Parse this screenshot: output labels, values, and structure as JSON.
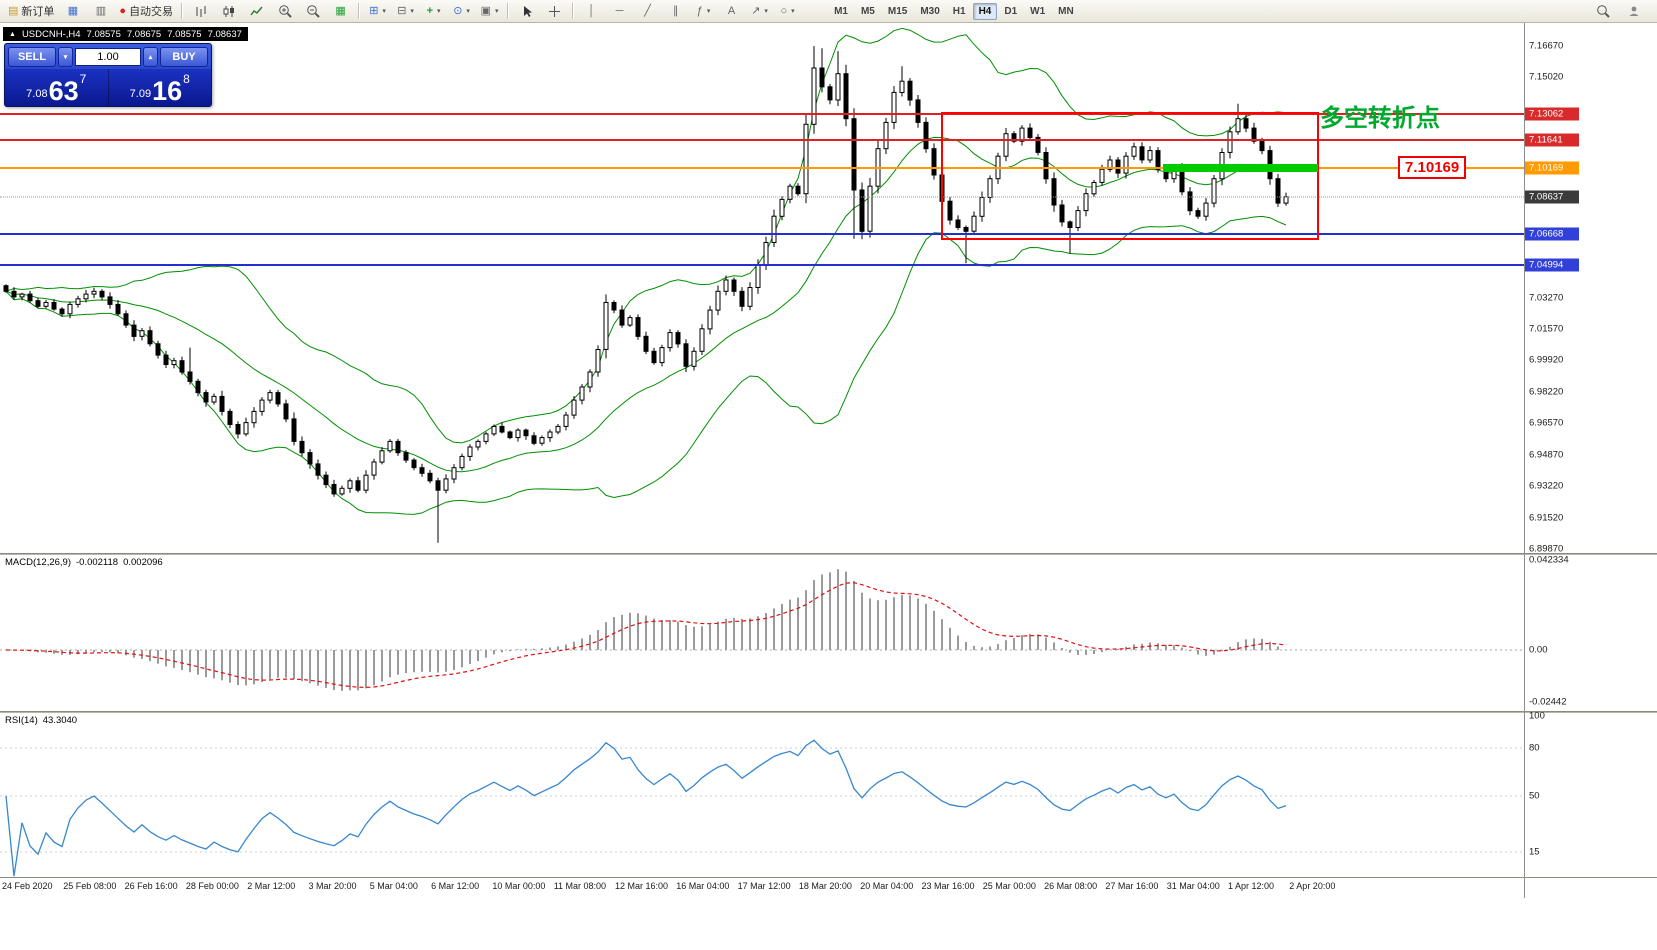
{
  "toolbar": {
    "new_order_label": "新订单",
    "autotrading_label": "自动交易",
    "timeframes": [
      "M1",
      "M5",
      "M15",
      "M30",
      "H1",
      "H4",
      "D1",
      "W1",
      "MN"
    ],
    "active_timeframe": "H4"
  },
  "icons": {
    "collapse": "▲",
    "new_order": "▤",
    "chart_window": "▦",
    "market_watch": "▥",
    "autotrading": "●",
    "tile": "▦",
    "arrange": "⊞",
    "shift": "⊟",
    "indicators": "+",
    "periods": "⊙",
    "templates": "▣",
    "vline": "│",
    "hline": "─",
    "trendline": "╱",
    "channel": "∥",
    "fibo": "ƒ",
    "text": "A",
    "arrows": "↗",
    "shapes": "○",
    "caret": "▾",
    "spin_up": "▴",
    "spin_down": "▾"
  },
  "chart": {
    "symbol_period": "USDCNH-,H4",
    "open": "7.08575",
    "high": "7.08675",
    "low": "7.08575",
    "close": "7.08637",
    "first_open": 7.039,
    "closes": [
      7.036,
      7.033,
      7.0345,
      7.031,
      7.028,
      7.03,
      7.0265,
      7.024,
      7.029,
      7.032,
      7.0345,
      7.036,
      7.033,
      7.029,
      7.024,
      7.018,
      7.012,
      7.015,
      7.008,
      7.002,
      6.997,
      6.999,
      6.993,
      6.988,
      6.982,
      6.977,
      6.98,
      6.972,
      6.965,
      6.96,
      6.966,
      6.972,
      6.978,
      6.982,
      6.976,
      6.968,
      6.956,
      6.95,
      6.944,
      6.938,
      6.933,
      6.928,
      6.931,
      6.935,
      6.93,
      6.938,
      6.945,
      6.951,
      6.956,
      6.95,
      6.946,
      6.942,
      6.939,
      6.935,
      6.93,
      6.936,
      6.942,
      6.948,
      6.953,
      6.956,
      6.96,
      6.964,
      6.961,
      6.958,
      6.962,
      6.959,
      6.955,
      6.958,
      6.961,
      6.964,
      6.97,
      6.978,
      6.985,
      6.993,
      7.005,
      7.03,
      7.026,
      7.018,
      7.022,
      7.012,
      7.004,
      6.998,
      7.006,
      7.014,
      7.008,
      6.996,
      7.004,
      7.016,
      7.026,
      7.036,
      7.042,
      7.036,
      7.028,
      7.038,
      7.05,
      7.062,
      7.076,
      7.085,
      7.092,
      7.088,
      7.125,
      7.155,
      7.145,
      7.138,
      7.152,
      7.128,
      7.09,
      7.068,
      7.092,
      7.112,
      7.126,
      7.142,
      7.148,
      7.138,
      7.126,
      7.112,
      7.098,
      7.084,
      7.074,
      7.07,
      7.068,
      7.076,
      7.086,
      7.096,
      7.108,
      7.12,
      7.116,
      7.123,
      7.118,
      7.11,
      7.096,
      7.082,
      7.073,
      7.07,
      7.079,
      7.088,
      7.094,
      7.101,
      7.106,
      7.099,
      7.108,
      7.113,
      7.106,
      7.111,
      7.101,
      7.096,
      7.101,
      7.089,
      7.079,
      7.076,
      7.083,
      7.096,
      7.11,
      7.121,
      7.128,
      7.123,
      7.116,
      7.111,
      7.096,
      7.083,
      7.08637
    ],
    "wick_overrides": {
      "23": {
        "high": 7.006
      },
      "54": {
        "low": 6.902
      },
      "100": {
        "high": 7.13
      },
      "101": {
        "high": 7.1667
      },
      "102": {
        "high": 7.1655
      },
      "104": {
        "high": 7.164
      },
      "106": {
        "low": 7.064
      },
      "112": {
        "high": 7.156
      },
      "120": {
        "low": 7.051
      },
      "133": {
        "low": 7.056
      },
      "154": {
        "high": 7.136
      }
    }
  },
  "trade_panel": {
    "sell_label": "SELL",
    "buy_label": "BUY",
    "volume": "1.00",
    "sell_price_prefix": "7.08",
    "sell_price_big": "63",
    "sell_price_sup": "7",
    "buy_price_prefix": "7.09",
    "buy_price_big": "16",
    "buy_price_sup": "8"
  },
  "levels": [
    {
      "price": "7.13062",
      "line": "#e02020",
      "tag": "#d82a2a",
      "dotted": false
    },
    {
      "price": "7.11641",
      "line": "#e02020",
      "tag": "#d82a2a",
      "dotted": false
    },
    {
      "price": "7.10169",
      "line": "#ff9a00",
      "tag": "#ff9a00",
      "dotted": false
    },
    {
      "price": "7.08637",
      "line": "#9a9a9a",
      "tag": "#3b3b3b",
      "dotted": true
    },
    {
      "price": "7.06668",
      "line": "#2330cf",
      "tag": "#3040d8",
      "dotted": false
    },
    {
      "price": "7.04994",
      "line": "#2330cf",
      "tag": "#3040d8",
      "dotted": false
    }
  ],
  "price_axis": {
    "ticks": [
      "7.16670",
      "7.15020",
      "7.03270",
      "7.01570",
      "6.99920",
      "6.98220",
      "6.96570",
      "6.94870",
      "6.93220",
      "6.91520",
      "6.89870"
    ]
  },
  "macd": {
    "name": "MACD(12,26,9)",
    "value": "-0.002118",
    "signal": "0.002096",
    "axis": [
      "0.042334",
      "0.00",
      "-0.02442"
    ]
  },
  "rsi": {
    "name": "RSI(14)",
    "value": "43.3040",
    "axis": [
      "100",
      "80",
      "50",
      "15"
    ]
  },
  "time_axis": [
    "24 Feb 2020",
    "25 Feb 08:00",
    "26 Feb 16:00",
    "28 Feb 00:00",
    "2 Mar 12:00",
    "3 Mar 20:00",
    "5 Mar 04:00",
    "6 Mar 12:00",
    "10 Mar 00:00",
    "11 Mar 08:00",
    "12 Mar 16:00",
    "16 Mar 04:00",
    "17 Mar 12:00",
    "18 Mar 20:00",
    "20 Mar 04:00",
    "23 Mar 16:00",
    "25 Mar 00:00",
    "26 Mar 08:00",
    "27 Mar 16:00",
    "31 Mar 04:00",
    "1 Apr 12:00",
    "2 Apr 20:00"
  ],
  "annotations": {
    "turning_point": "多空转折点",
    "price_label": "7.10169"
  }
}
